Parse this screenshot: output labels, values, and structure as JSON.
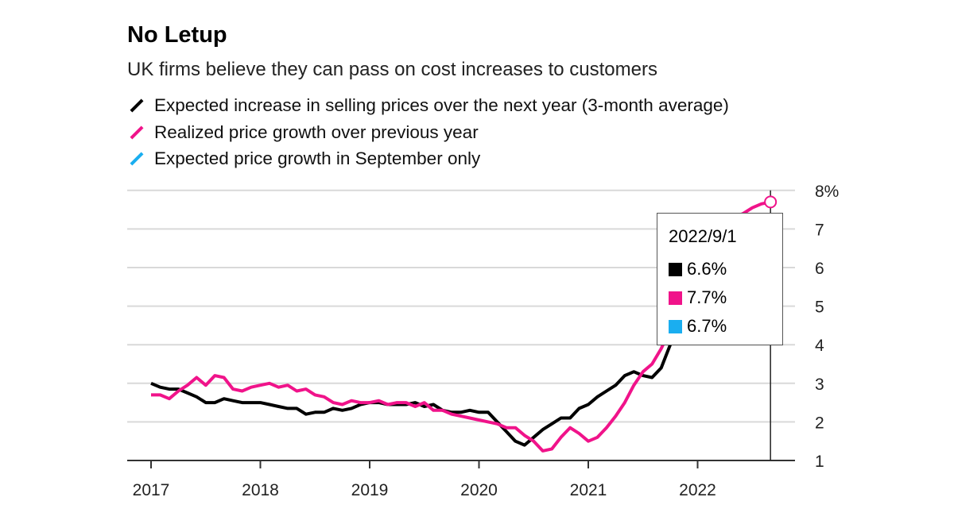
{
  "chart_data": {
    "type": "line",
    "title": "No Letup",
    "subtitle": "UK firms believe they can pass on cost increases to customers",
    "x_ticks": [
      "2017",
      "2018",
      "2019",
      "2020",
      "2021",
      "2022"
    ],
    "y_ticks": [
      "1",
      "2",
      "3",
      "4",
      "5",
      "6",
      "7",
      "8%"
    ],
    "ylim": [
      1,
      8
    ],
    "grid": true,
    "x_start": "2017-01",
    "series": [
      {
        "name": "Expected increase in selling prices over the next year (3-month average)",
        "color": "#000000",
        "values": [
          3.0,
          2.9,
          2.85,
          2.85,
          2.75,
          2.65,
          2.5,
          2.5,
          2.6,
          2.55,
          2.5,
          2.5,
          2.5,
          2.45,
          2.4,
          2.35,
          2.35,
          2.2,
          2.25,
          2.25,
          2.35,
          2.3,
          2.35,
          2.45,
          2.5,
          2.5,
          2.45,
          2.45,
          2.45,
          2.5,
          2.4,
          2.45,
          2.3,
          2.25,
          2.25,
          2.3,
          2.25,
          2.25,
          2.0,
          1.75,
          1.5,
          1.4,
          1.6,
          1.8,
          1.95,
          2.1,
          2.1,
          2.35,
          2.45,
          2.65,
          2.8,
          2.95,
          3.2,
          3.3,
          3.2,
          3.15,
          3.4,
          4.0,
          4.5,
          5.0,
          5.5,
          5.8,
          6.0,
          6.2,
          6.3,
          6.4,
          6.5,
          6.6,
          6.6
        ]
      },
      {
        "name": "Realized price growth over previous year",
        "color": "#f0138a",
        "values": [
          2.7,
          2.7,
          2.6,
          2.8,
          2.95,
          3.15,
          2.95,
          3.2,
          3.15,
          2.85,
          2.8,
          2.9,
          2.95,
          3.0,
          2.9,
          2.95,
          2.8,
          2.85,
          2.7,
          2.65,
          2.5,
          2.45,
          2.55,
          2.5,
          2.5,
          2.55,
          2.45,
          2.5,
          2.5,
          2.4,
          2.5,
          2.3,
          2.3,
          2.2,
          2.15,
          2.1,
          2.05,
          2.0,
          1.95,
          1.85,
          1.85,
          1.65,
          1.5,
          1.25,
          1.3,
          1.6,
          1.85,
          1.7,
          1.5,
          1.6,
          1.85,
          2.15,
          2.5,
          2.95,
          3.3,
          3.5,
          3.9,
          4.4,
          5.0,
          5.5,
          6.0,
          6.4,
          6.8,
          7.1,
          7.3,
          7.4,
          7.55,
          7.65,
          7.7
        ]
      },
      {
        "name": "Expected price growth in September only",
        "color": "#1aaef0",
        "points": [
          {
            "x": "2022-09",
            "y": 6.7
          }
        ]
      }
    ],
    "tooltip": {
      "date": "2022/9/1",
      "values": [
        {
          "label": "6.6%",
          "color": "#000000"
        },
        {
          "label": "7.7%",
          "color": "#f0138a"
        },
        {
          "label": "6.7%",
          "color": "#1aaef0"
        }
      ]
    }
  }
}
